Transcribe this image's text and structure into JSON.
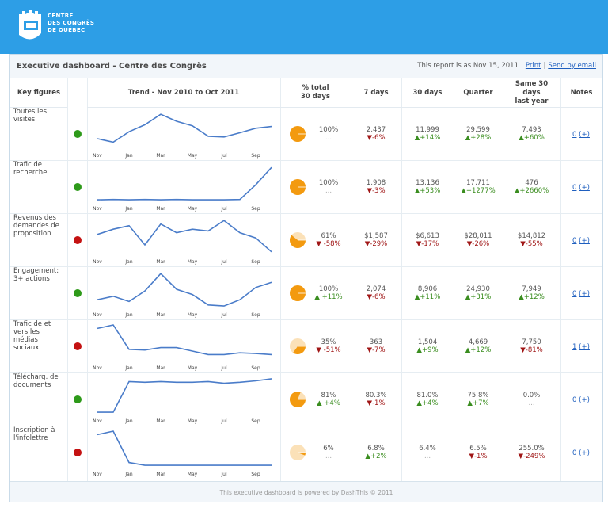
{
  "brand": {
    "line1": "CENTRE",
    "line2": "DES CONGRÈS",
    "line3": "DE QUÉBEC",
    "header_color": "#2d9ee6"
  },
  "titlebar": {
    "title": "Executive dashboard - Centre des Congrès",
    "report_date": "This report is as Nov 15, 2011",
    "print_label": "Print",
    "email_label": "Send by email"
  },
  "columns": {
    "key_figures": "Key figures",
    "trend": "Trend - Nov 2010 to Oct 2011",
    "pct_total_l1": "% total",
    "pct_total_l2": "30 days",
    "d7": "7 days",
    "d30": "30 days",
    "quarter": "Quarter",
    "same_l1": "Same 30",
    "same_l2": "days",
    "same_l3": "last year",
    "notes": "Notes"
  },
  "trend_axis": [
    "Nov",
    "Jan",
    "Mar",
    "May",
    "Jul",
    "Sep"
  ],
  "rows": [
    {
      "label": "Toutes les visites",
      "status": "green",
      "trend": [
        0.25,
        0.15,
        0.45,
        0.65,
        0.95,
        0.75,
        0.62,
        0.32,
        0.3,
        0.42,
        0.55,
        0.6
      ],
      "pie_fraction": 1.0,
      "pct": "100%",
      "pct_change": "...",
      "pct_dir": "neutral",
      "d7": "2,437",
      "d7_change": "▼-6%",
      "d7_dir": "down",
      "d30": "11,999",
      "d30_change": "▲+14%",
      "d30_dir": "up",
      "quarter": "29,599",
      "quarter_change": "▲+28%",
      "quarter_dir": "up",
      "same": "7,493",
      "same_change": "▲+60%",
      "same_dir": "up",
      "notes_count": "0",
      "notes_add": "(+)"
    },
    {
      "label": "Trafic de recherche",
      "status": "green",
      "trend": [
        0.02,
        0.03,
        0.02,
        0.03,
        0.02,
        0.03,
        0.02,
        0.02,
        0.02,
        0.03,
        0.45,
        0.95
      ],
      "pie_fraction": 1.0,
      "pct": "100%",
      "pct_change": "...",
      "pct_dir": "neutral",
      "d7": "1,908",
      "d7_change": "▼-3%",
      "d7_dir": "down",
      "d30": "13,136",
      "d30_change": "▲+53%",
      "d30_dir": "up",
      "quarter": "17,711",
      "quarter_change": "▲+1277%",
      "quarter_dir": "up",
      "same": "476",
      "same_change": "▲+2660%",
      "same_dir": "up",
      "notes_count": "0",
      "notes_add": "(+)"
    },
    {
      "label": "Revenus des demandes de proposition",
      "status": "red",
      "trend": [
        0.55,
        0.7,
        0.8,
        0.25,
        0.85,
        0.6,
        0.7,
        0.65,
        0.95,
        0.6,
        0.45,
        0.05
      ],
      "pie_fraction": 0.61,
      "pct": "61%",
      "pct_change": "▼ -58%",
      "pct_dir": "down",
      "d7": "$1,587",
      "d7_change": "▼-29%",
      "d7_dir": "down",
      "d30": "$6,613",
      "d30_change": "▼-17%",
      "d30_dir": "down",
      "quarter": "$28,011",
      "quarter_change": "▼-26%",
      "quarter_dir": "down",
      "same": "$14,812",
      "same_change": "▼-55%",
      "same_dir": "down",
      "notes_count": "0",
      "notes_add": "(+)"
    },
    {
      "label": "Engagement: 3+ actions",
      "status": "green",
      "trend": [
        0.2,
        0.3,
        0.15,
        0.45,
        0.95,
        0.5,
        0.35,
        0.05,
        0.02,
        0.2,
        0.55,
        0.7
      ],
      "pie_fraction": 1.0,
      "pct": "100%",
      "pct_change": "▲ +11%",
      "pct_dir": "up",
      "d7": "2,074",
      "d7_change": "▼-6%",
      "d7_dir": "down",
      "d30": "8,906",
      "d30_change": "▲+11%",
      "d30_dir": "up",
      "quarter": "24,930",
      "quarter_change": "▲+31%",
      "quarter_dir": "up",
      "same": "7,949",
      "same_change": "▲+12%",
      "same_dir": "up",
      "notes_count": "0",
      "notes_add": "(+)"
    },
    {
      "label": "Trafic de et vers les médias sociaux",
      "status": "red",
      "trend": [
        0.9,
        1.0,
        0.3,
        0.28,
        0.35,
        0.35,
        0.25,
        0.15,
        0.15,
        0.2,
        0.18,
        0.15
      ],
      "pie_fraction": 0.35,
      "pct": "35%",
      "pct_change": "▼ -51%",
      "pct_dir": "down",
      "d7": "363",
      "d7_change": "▼-7%",
      "d7_dir": "down",
      "d30": "1,504",
      "d30_change": "▲+9%",
      "d30_dir": "up",
      "quarter": "4,669",
      "quarter_change": "▲+12%",
      "quarter_dir": "up",
      "same": "7,750",
      "same_change": "▼-81%",
      "same_dir": "down",
      "notes_count": "1",
      "notes_add": "(+)"
    },
    {
      "label": "Télécharg. de documents",
      "status": "green",
      "trend": [
        0.02,
        0.02,
        0.9,
        0.88,
        0.9,
        0.88,
        0.88,
        0.9,
        0.85,
        0.88,
        0.92,
        0.98
      ],
      "pie_fraction": 0.81,
      "pct": "81%",
      "pct_change": "▲ +4%",
      "pct_dir": "up",
      "d7": "80.3%",
      "d7_change": "▼-1%",
      "d7_dir": "down",
      "d30": "81.0%",
      "d30_change": "▲+4%",
      "d30_dir": "up",
      "quarter": "75.8%",
      "quarter_change": "▲+7%",
      "quarter_dir": "up",
      "same": "0.0%",
      "same_change": "...",
      "same_dir": "neutral",
      "notes_count": "0",
      "notes_add": "(+)"
    },
    {
      "label": "Inscription à l'infolettre",
      "status": "red",
      "trend": [
        0.9,
        1.0,
        0.1,
        0.02,
        0.02,
        0.02,
        0.02,
        0.02,
        0.02,
        0.02,
        0.02,
        0.02
      ],
      "pie_fraction": 0.06,
      "pct": "6%",
      "pct_change": "...",
      "pct_dir": "neutral",
      "d7": "6.8%",
      "d7_change": "▲+2%",
      "d7_dir": "up",
      "d30": "6.4%",
      "d30_change": "...",
      "d30_dir": "neutral",
      "quarter": "6.5%",
      "quarter_change": "▼-1%",
      "quarter_dir": "down",
      "same": "255.0%",
      "same_change": "▼-249%",
      "same_dir": "down",
      "notes_count": "0",
      "notes_add": "(+)"
    }
  ],
  "colors": {
    "green": "#2e9a1a",
    "red": "#c41212",
    "line": "#4a7cc9",
    "pie_fill": "#f39a0f",
    "pie_bg": "#fbe1b8",
    "up": "#3a8d1f",
    "down": "#a01616"
  },
  "footer": "This executive dashboard is powered by DashThis © 2011"
}
